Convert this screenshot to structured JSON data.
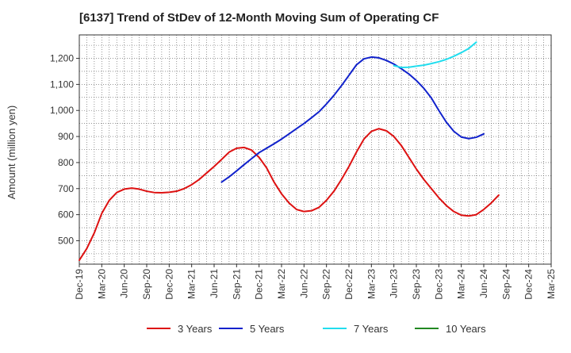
{
  "chart_data": {
    "type": "line",
    "title": "[6137]  Trend of StDev of 12-Month Moving Sum of Operating CF",
    "xlabel": "",
    "ylabel": "Amount (million yen)",
    "ylim": [
      410,
      1290
    ],
    "yticks": [
      500,
      600,
      700,
      800,
      900,
      1000,
      1100,
      1200
    ],
    "ytick_labels": [
      "500",
      "600",
      "700",
      "800",
      "900",
      "1,000",
      "1,100",
      "1,200"
    ],
    "x_start": "Dec-19",
    "x_end": "Mar-25",
    "x_tick_labels": [
      "Dec-19",
      "Mar-20",
      "Jun-20",
      "Sep-20",
      "Dec-20",
      "Mar-21",
      "Jun-21",
      "Sep-21",
      "Dec-21",
      "Mar-22",
      "Jun-22",
      "Sep-22",
      "Dec-22",
      "Mar-23",
      "Jun-23",
      "Sep-23",
      "Dec-23",
      "Mar-24",
      "Jun-24",
      "Sep-24",
      "Dec-24",
      "Mar-25"
    ],
    "grid": true,
    "legend_position": "bottom",
    "series": [
      {
        "name": "3 Years",
        "color": "#dd1111",
        "start": "Dec-19",
        "values": [
          425,
          470,
          530,
          605,
          655,
          685,
          698,
          702,
          698,
          690,
          685,
          684,
          686,
          690,
          700,
          715,
          735,
          760,
          785,
          812,
          840,
          855,
          858,
          848,
          820,
          780,
          725,
          680,
          645,
          620,
          612,
          615,
          628,
          655,
          690,
          735,
          785,
          840,
          890,
          920,
          930,
          922,
          900,
          865,
          820,
          775,
          735,
          700,
          665,
          635,
          612,
          598,
          595,
          600,
          620,
          645,
          675
        ]
      },
      {
        "name": "5 Years",
        "color": "#1122cc",
        "start": "Dec-19",
        "values": [
          null,
          null,
          null,
          null,
          null,
          null,
          null,
          null,
          null,
          null,
          null,
          null,
          null,
          null,
          null,
          null,
          null,
          null,
          null,
          725,
          745,
          768,
          792,
          815,
          838,
          855,
          872,
          890,
          910,
          930,
          950,
          972,
          995,
          1025,
          1058,
          1095,
          1135,
          1175,
          1198,
          1205,
          1202,
          1192,
          1178,
          1160,
          1140,
          1115,
          1085,
          1048,
          1000,
          955,
          920,
          898,
          892,
          897,
          910
        ]
      },
      {
        "name": "7 Years",
        "color": "#22ddee",
        "start": "Dec-19",
        "values": [
          null,
          null,
          null,
          null,
          null,
          null,
          null,
          null,
          null,
          null,
          null,
          null,
          null,
          null,
          null,
          null,
          null,
          null,
          null,
          null,
          null,
          null,
          null,
          null,
          null,
          null,
          null,
          null,
          null,
          null,
          null,
          null,
          null,
          null,
          null,
          null,
          null,
          null,
          null,
          null,
          null,
          null,
          1172,
          1165,
          1166,
          1170,
          1174,
          1180,
          1187,
          1196,
          1208,
          1222,
          1238,
          1262
        ]
      },
      {
        "name": "10 Years",
        "color": "#228822",
        "start": "Dec-19",
        "values": []
      }
    ]
  }
}
